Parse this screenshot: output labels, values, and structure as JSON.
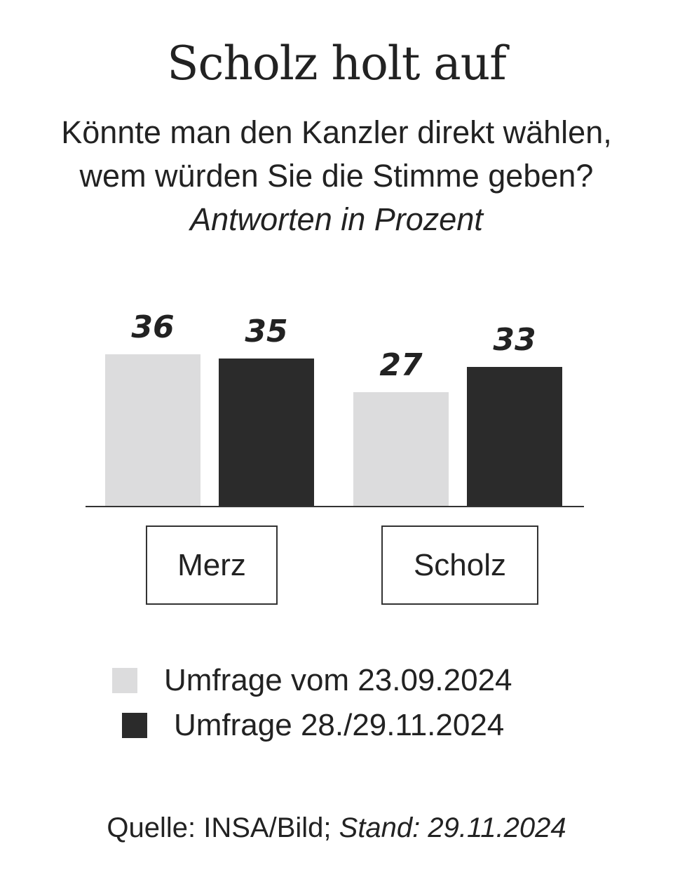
{
  "header": {
    "title": "Scholz holt auf",
    "subtitle": "Könnte man den Kanzler direkt wählen, wem würden Sie die Stimme geben?",
    "unit_note": "Antworten in Prozent"
  },
  "footer": {
    "source_label": "Quelle: INSA/Bild;",
    "date_label": "Stand: 29.11.2024"
  },
  "colors": {
    "series_1": "#dcdcdd",
    "series_2": "#2b2b2b",
    "axis": "#333333",
    "text": "#222222"
  },
  "chart_data": {
    "type": "bar",
    "title": "Scholz holt auf",
    "subtitle": "Könnte man den Kanzler direkt wählen, wem würden Sie die Stimme geben? Antworten in Prozent",
    "categories": [
      "Merz",
      "Scholz"
    ],
    "series": [
      {
        "name": "Umfrage vom 23.09.2024",
        "values": [
          36,
          27
        ],
        "color": "#dcdcdd"
      },
      {
        "name": "Umfrage 28./29.11.2024",
        "values": [
          35,
          33
        ],
        "color": "#2b2b2b"
      }
    ],
    "xlabel": "",
    "ylabel": "",
    "ylim": [
      0,
      36
    ],
    "grid": false,
    "legend_position": "bottom",
    "data_labels": true
  }
}
